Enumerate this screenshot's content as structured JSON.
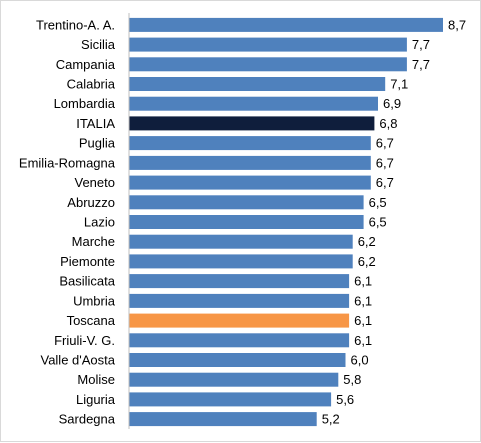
{
  "chart_data": {
    "type": "bar",
    "orientation": "horizontal",
    "title": "",
    "xlabel": "",
    "ylabel": "",
    "xlim": [
      0,
      9.2
    ],
    "grid": false,
    "legend": "none",
    "categories": [
      "Trentino-A. A.",
      "Sicilia",
      "Campania",
      "Calabria",
      "Lombardia",
      "ITALIA",
      "Puglia",
      "Emilia-Romagna",
      "Veneto",
      "Abruzzo",
      "Lazio",
      "Marche",
      "Piemonte",
      "Basilicata",
      "Umbria",
      "Toscana",
      "Friuli-V. G.",
      "Valle d'Aosta",
      "Molise",
      "Liguria",
      "Sardegna"
    ],
    "values": [
      8.7,
      7.7,
      7.7,
      7.1,
      6.9,
      6.8,
      6.7,
      6.7,
      6.7,
      6.5,
      6.5,
      6.2,
      6.2,
      6.1,
      6.1,
      6.1,
      6.1,
      6.0,
      5.8,
      5.6,
      5.2
    ],
    "value_labels": [
      "8,7",
      "7,7",
      "7,7",
      "7,1",
      "6,9",
      "6,8",
      "6,7",
      "6,7",
      "6,7",
      "6,5",
      "6,5",
      "6,2",
      "6,2",
      "6,1",
      "6,1",
      "6,1",
      "6,1",
      "6,0",
      "5,8",
      "5,6",
      "5,2"
    ],
    "colors": {
      "default": "#4f81bd",
      "highlight_national": "#0f1e3c",
      "highlight_region": "#f79646",
      "axis": "#bfbfbf"
    },
    "highlights": {
      "ITALIA": "highlight_national",
      "Toscana": "highlight_region"
    }
  }
}
